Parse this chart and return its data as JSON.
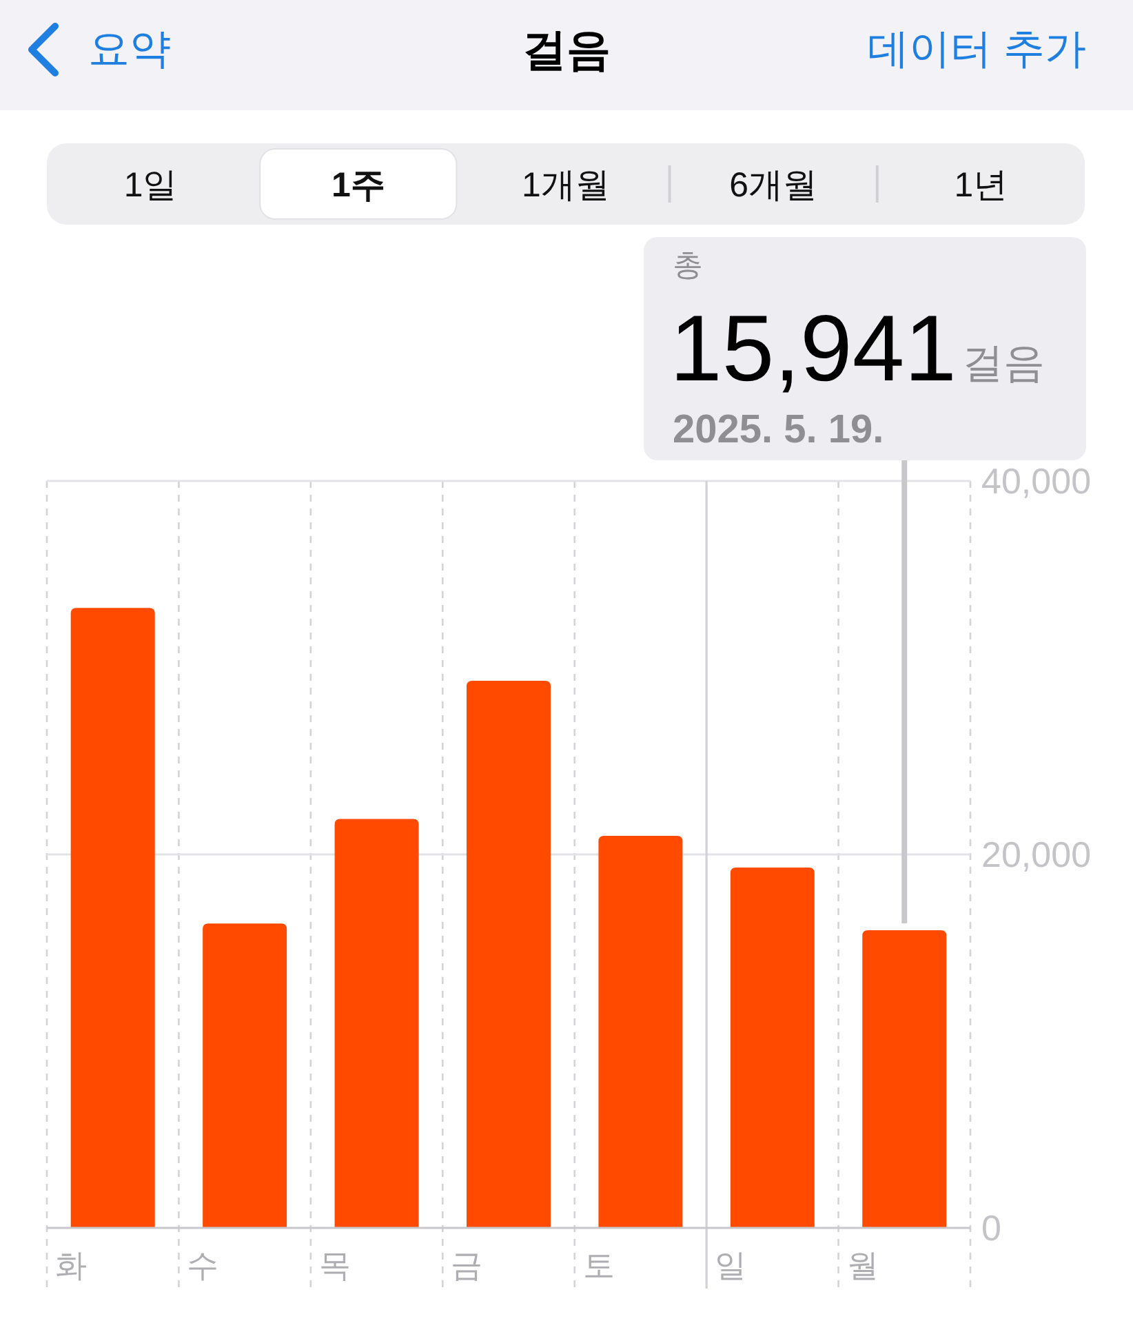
{
  "chart_data": {
    "type": "bar",
    "title": "걸음",
    "annotations": [
      "요약",
      "데이터 추가",
      "1일",
      "1주",
      "1개월",
      "6개월",
      "1년",
      "총",
      "15,941",
      "걸음",
      "2025. 5. 19."
    ],
    "categories": [
      "화",
      "수",
      "목",
      "금",
      "토",
      "일",
      "월"
    ],
    "values": [
      33200,
      16300,
      21900,
      29300,
      21000,
      19300,
      15941
    ],
    "color": "#ff4a00",
    "ylim": [
      0,
      40000
    ],
    "yticks": [
      0,
      {
        "value": 20000,
        "label": "20,000"
      },
      {
        "value": 40000,
        "label": "40,000"
      }
    ],
    "grid": true,
    "ref_lines": [
      {
        "axis": "x",
        "value": "월",
        "color": "#c7c7cc"
      },
      {
        "axis": "x",
        "value": "일",
        "line_style": "solid",
        "color": "#d1d1d6"
      }
    ]
  }
}
